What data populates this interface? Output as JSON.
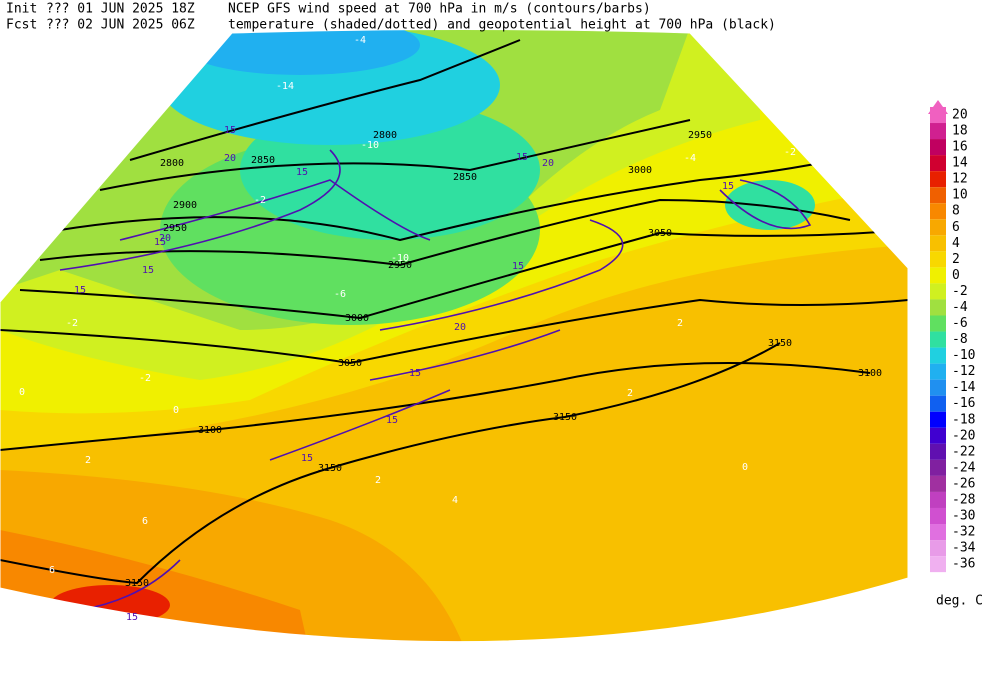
{
  "header": {
    "init_label": "Init",
    "init_time": "??? 01 JUN 2025 18Z",
    "fcst_label": "Fcst",
    "fcst_time": "??? 02 JUN 2025 06Z",
    "title_line1": "NCEP GFS wind speed at 700 hPa in m/s (contours/barbs)",
    "title_line2": "temperature (shaded/dotted) and geopotential height at 700 hPa (black)"
  },
  "colorbar": {
    "unit": "deg. C",
    "levels": [
      20,
      18,
      16,
      14,
      12,
      10,
      8,
      6,
      4,
      2,
      0,
      -2,
      -4,
      -6,
      -8,
      -10,
      -12,
      -14,
      -16,
      -18,
      -20,
      -22,
      -24,
      -26,
      -28,
      -30,
      -32,
      -34,
      -36
    ],
    "colors": [
      "#f060c0",
      "#d02090",
      "#c00060",
      "#d00030",
      "#e82000",
      "#f06000",
      "#f88800",
      "#f8a800",
      "#f8c000",
      "#f8d800",
      "#f0f000",
      "#d0f020",
      "#a0e040",
      "#60e060",
      "#30e0a0",
      "#20d0e0",
      "#20b0f0",
      "#2090f0",
      "#1060f0",
      "#0000ff",
      "#4000d0",
      "#6010b0",
      "#8020a0",
      "#a030a0",
      "#c040c0",
      "#d050d0",
      "#e070e0",
      "#e89be8",
      "#f0b0f0"
    ]
  },
  "map": {
    "height_labels": [
      2800,
      2800,
      2850,
      2850,
      2900,
      2950,
      2950,
      2950,
      3000,
      3000,
      3050,
      3050,
      3100,
      3100,
      3150,
      3150,
      3150,
      3150
    ],
    "wind_labels": [
      15,
      15,
      15,
      20,
      20,
      15,
      15,
      20,
      15,
      15,
      15,
      15,
      15,
      20,
      15,
      15
    ],
    "temperature_labels": [
      -14,
      -10,
      -10,
      -6,
      -4,
      -2,
      -2,
      -2,
      0,
      0,
      2,
      2,
      2,
      4,
      6,
      6,
      0,
      2,
      -2,
      -4
    ]
  }
}
